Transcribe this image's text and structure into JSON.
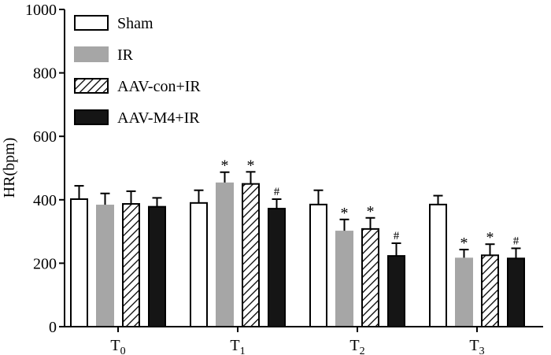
{
  "chart_data": {
    "type": "bar",
    "title": "",
    "xlabel": "",
    "ylabel": "HR(bpm)",
    "ylim": [
      0,
      1000
    ],
    "yticks": [
      0,
      200,
      400,
      600,
      800,
      1000
    ],
    "categories": [
      {
        "base": "T",
        "sub": "0"
      },
      {
        "base": "T",
        "sub": "1"
      },
      {
        "base": "T",
        "sub": "2"
      },
      {
        "base": "T",
        "sub": "3"
      }
    ],
    "legend_position": "top-left",
    "series": [
      {
        "name": "Sham",
        "style": "open",
        "fill": "#ffffff",
        "values": [
          402,
          390,
          385,
          385
        ],
        "errors": [
          42,
          40,
          45,
          28
        ],
        "marks": [
          "",
          "",
          "",
          ""
        ]
      },
      {
        "name": "IR",
        "style": "gray",
        "fill": "#a6a6a6",
        "values": [
          382,
          452,
          300,
          215
        ],
        "errors": [
          38,
          35,
          38,
          28
        ],
        "marks": [
          "",
          "*",
          "*",
          "*"
        ]
      },
      {
        "name": "AAV-con+IR",
        "style": "hatched",
        "fill": "#ffffff",
        "values": [
          387,
          450,
          308,
          225
        ],
        "errors": [
          40,
          38,
          35,
          35
        ],
        "marks": [
          "",
          "*",
          "*",
          "*"
        ]
      },
      {
        "name": "AAV-M4+IR",
        "style": "black",
        "fill": "#151515",
        "values": [
          378,
          372,
          223,
          215
        ],
        "errors": [
          28,
          30,
          40,
          32
        ],
        "marks": [
          "",
          "#",
          "#",
          "#"
        ]
      }
    ]
  }
}
